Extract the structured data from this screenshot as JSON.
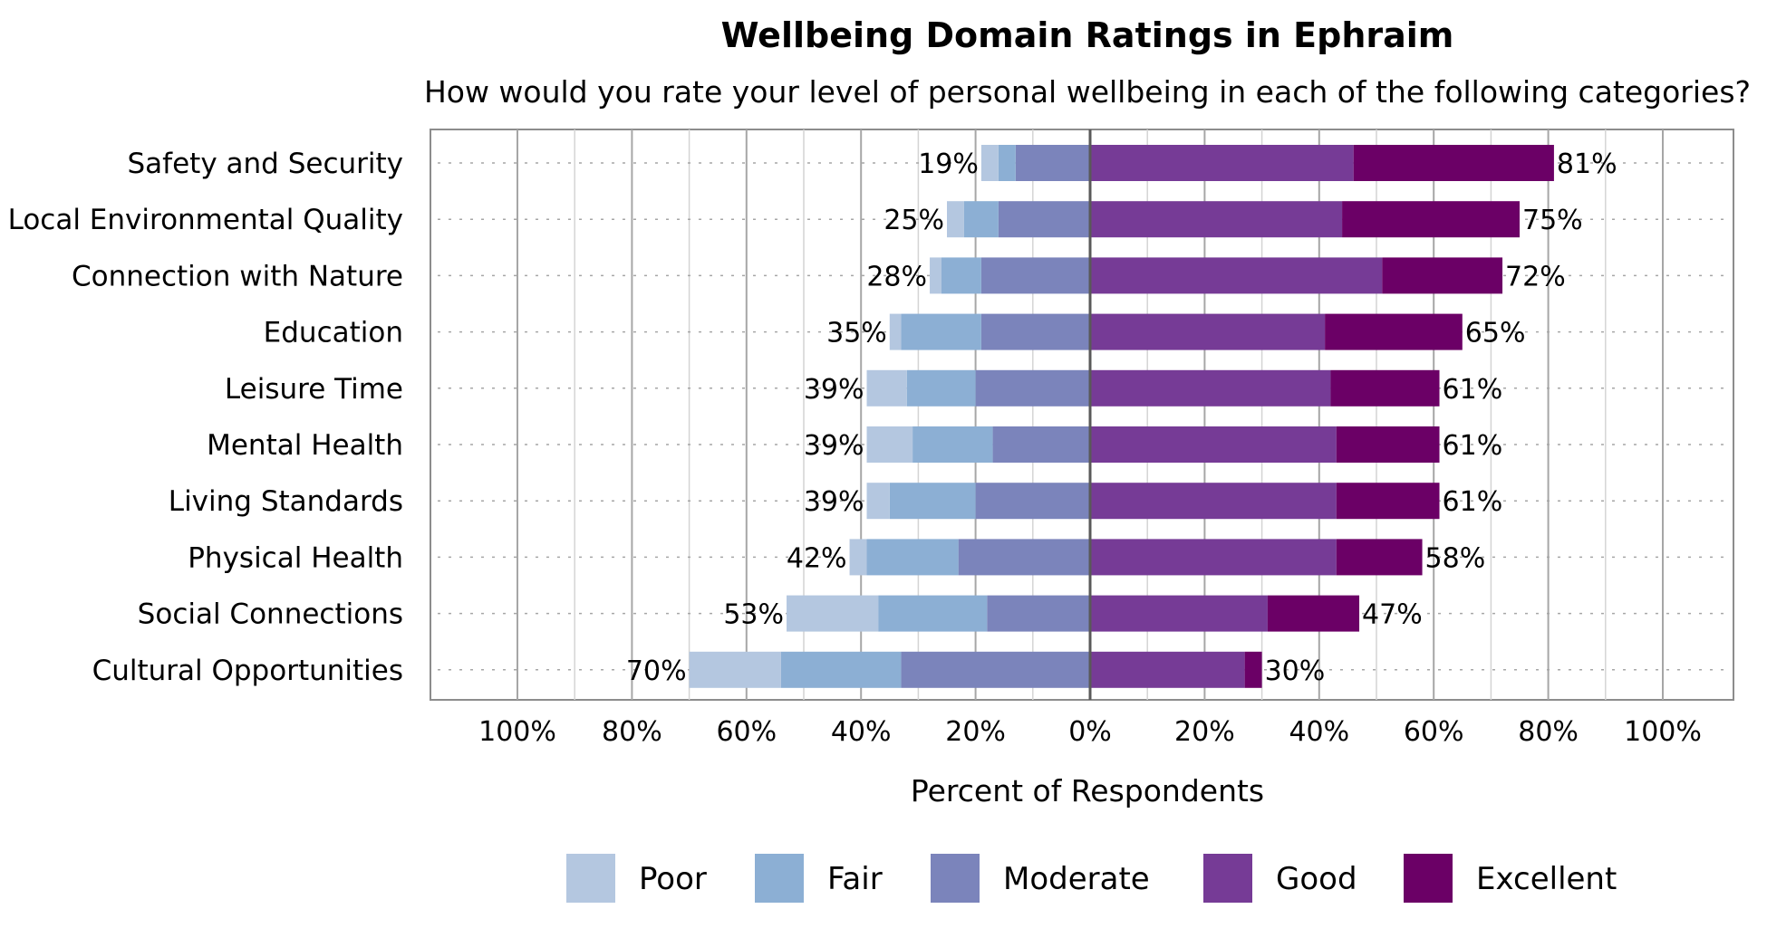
{
  "chart_data": {
    "type": "bar",
    "orientation": "horizontal-diverging-stacked",
    "title": "Wellbeing Domain Ratings in Ephraim",
    "subtitle": "How would you rate your level of personal wellbeing in each of the following categories?",
    "xlabel": "Percent of Respondents",
    "xlim": [
      -100,
      100
    ],
    "x_ticks": [
      -100,
      -80,
      -60,
      -40,
      -20,
      0,
      20,
      40,
      60,
      80,
      100
    ],
    "x_tick_labels": [
      "100%",
      "80%",
      "60%",
      "40%",
      "20%",
      "0%",
      "20%",
      "40%",
      "60%",
      "80%",
      "100%"
    ],
    "grid": true,
    "legend_position": "bottom",
    "categories": [
      "Safety and Security",
      "Local Environmental Quality",
      "Connection with Nature",
      "Education",
      "Leisure Time",
      "Mental Health",
      "Living Standards",
      "Physical Health",
      "Social Connections",
      "Cultural Opportunities"
    ],
    "series": [
      {
        "name": "Poor",
        "side": "negative",
        "color": "#b4c7e0",
        "values": [
          3,
          3,
          2,
          2,
          7,
          8,
          4,
          3,
          16,
          16
        ]
      },
      {
        "name": "Fair",
        "side": "negative",
        "color": "#8cafd4",
        "values": [
          3,
          6,
          7,
          14,
          12,
          14,
          15,
          16,
          19,
          21
        ]
      },
      {
        "name": "Moderate",
        "side": "negative",
        "color": "#7b84bb",
        "values": [
          13,
          16,
          19,
          19,
          20,
          17,
          20,
          23,
          18,
          33
        ]
      },
      {
        "name": "Good",
        "side": "positive",
        "color": "#763b96",
        "values": [
          46,
          44,
          51,
          41,
          42,
          43,
          43,
          43,
          31,
          27
        ]
      },
      {
        "name": "Excellent",
        "side": "positive",
        "color": "#6b0066",
        "values": [
          35,
          31,
          21,
          24,
          19,
          18,
          18,
          15,
          16,
          3
        ]
      }
    ],
    "negative_totals": [
      "19%",
      "25%",
      "28%",
      "35%",
      "39%",
      "39%",
      "39%",
      "42%",
      "53%",
      "70%"
    ],
    "positive_totals": [
      "81%",
      "75%",
      "72%",
      "65%",
      "61%",
      "61%",
      "61%",
      "58%",
      "47%",
      "30%"
    ]
  }
}
